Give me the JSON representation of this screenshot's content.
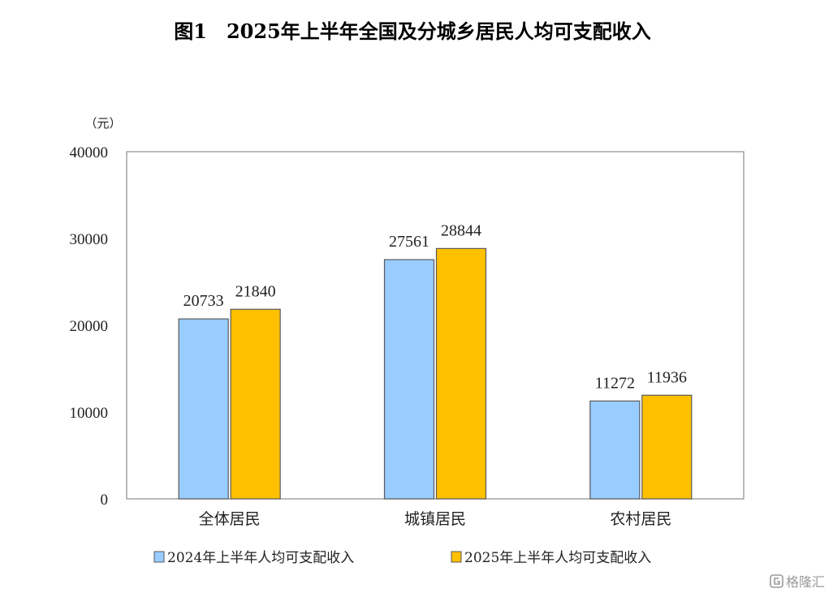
{
  "chart_data": {
    "type": "bar",
    "title": "图1　2025年上半年全国及分城乡居民人均可支配收入",
    "unit_label": "（元）",
    "xlabel": "",
    "ylabel": "",
    "ylim": [
      0,
      40000
    ],
    "yticks": [
      0,
      10000,
      20000,
      30000,
      40000
    ],
    "grid": false,
    "legend_position": "bottom",
    "categories": [
      "全体居民",
      "城镇居民",
      "农村居民"
    ],
    "series": [
      {
        "name": "2024年上半年人均可支配收入",
        "color": "#99ccff",
        "values": [
          20733,
          27561,
          11272
        ]
      },
      {
        "name": "2025年上半年人均可支配收入",
        "color": "#ffc000",
        "values": [
          21840,
          28844,
          11936
        ]
      }
    ],
    "data_labels": true
  },
  "watermark": {
    "icon": "gelonghui-logo-icon",
    "text": "格隆汇"
  }
}
